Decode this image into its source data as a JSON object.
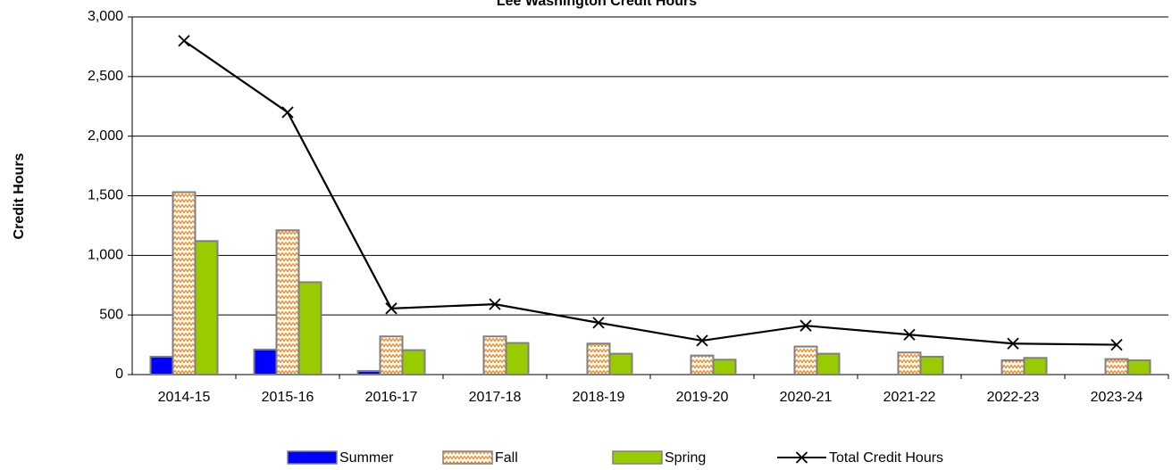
{
  "chart_data": {
    "type": "bar_line",
    "title": "Lee Washington Credit Hours",
    "y_label": "Credit Hours",
    "categories": [
      "2014-15",
      "2015-16",
      "2016-17",
      "2017-18",
      "2018-19",
      "2019-20",
      "2020-21",
      "2021-22",
      "2022-23",
      "2023-24"
    ],
    "series": [
      {
        "name": "Summer",
        "type": "bar",
        "color": "#0000ff",
        "pattern": false,
        "values": [
          150,
          210,
          30,
          0,
          0,
          0,
          0,
          0,
          0,
          0
        ]
      },
      {
        "name": "Fall",
        "type": "bar",
        "color": "#f28c28",
        "pattern": true,
        "values": [
          1530,
          1210,
          320,
          320,
          260,
          160,
          235,
          185,
          120,
          130
        ]
      },
      {
        "name": "Spring",
        "type": "bar",
        "color": "#99cc00",
        "pattern": false,
        "values": [
          1120,
          775,
          205,
          265,
          175,
          125,
          175,
          150,
          140,
          120
        ]
      },
      {
        "name": "Total Credit Hours",
        "type": "line",
        "color": "#000000",
        "values": [
          2800,
          2200,
          555,
          590,
          435,
          285,
          410,
          335,
          260,
          250
        ]
      }
    ],
    "ylim": [
      0,
      3000
    ],
    "yticks": [
      0,
      500,
      {
        "value": 1000,
        "label": "1,000"
      },
      {
        "value": 1500,
        "label": "1,500"
      },
      {
        "value": 2000,
        "label": "2,000"
      },
      {
        "value": 2500,
        "label": "2,500"
      },
      {
        "value": 3000,
        "label": "3,000"
      }
    ],
    "grid": true,
    "legend": "bottom"
  }
}
